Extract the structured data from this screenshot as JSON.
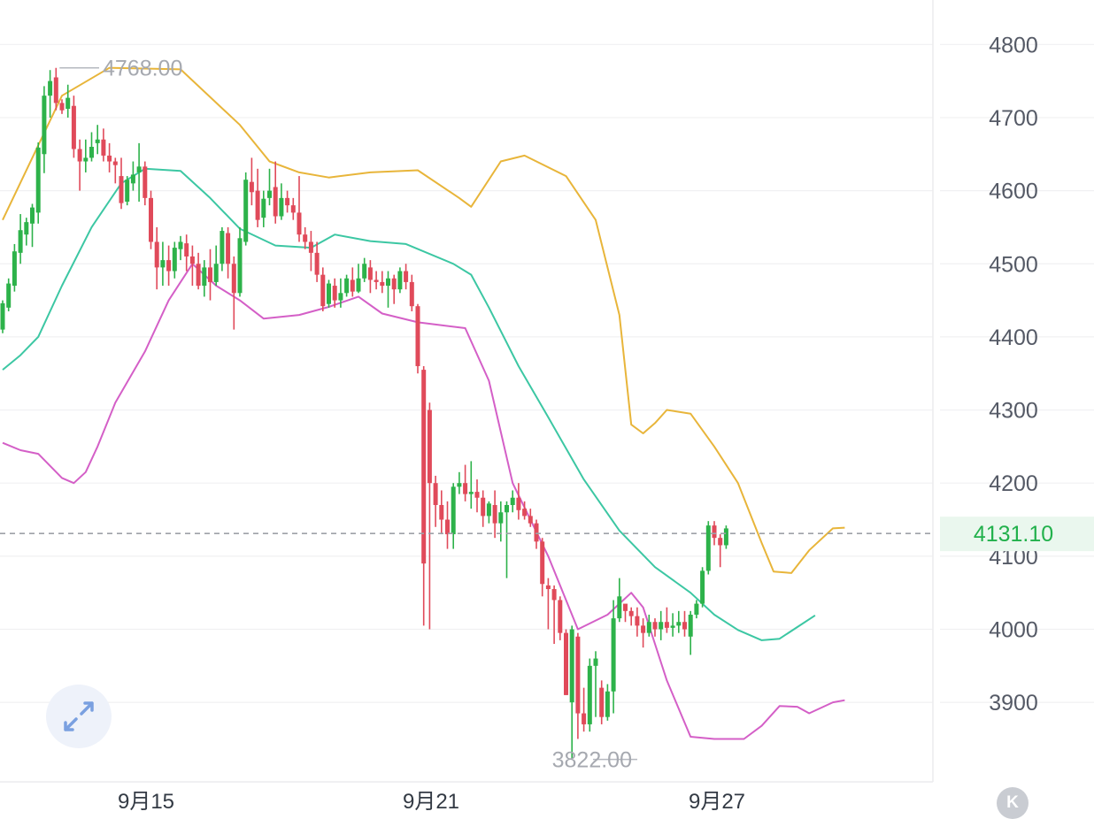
{
  "chart_data": {
    "type": "candlestick",
    "y_axis": {
      "ticks": [
        3900,
        4000,
        4100,
        4200,
        4300,
        4400,
        4500,
        4600,
        4700,
        4800
      ],
      "ylim": [
        3790,
        4855
      ],
      "position": "right"
    },
    "x_axis": {
      "labels": [
        "9月15",
        "9月21",
        "9月27"
      ]
    },
    "last_price": {
      "value": 4131.1,
      "label": "4131.10",
      "color": "#22b14c"
    },
    "max_annotation": {
      "value": 4768.0,
      "label": "4768.00"
    },
    "min_annotation": {
      "value": 3822.0,
      "label": "3822.00"
    },
    "colors": {
      "up": "#2db24a",
      "down": "#e04a5a",
      "upper_band": "#e8b53a",
      "middle_band": "#3cc7a3",
      "lower_band": "#d45fc7"
    },
    "candles": [
      [
        4410,
        4446,
        4405,
        4450
      ],
      [
        4440,
        4473,
        4435,
        4480
      ],
      [
        4470,
        4517,
        4462,
        4527
      ],
      [
        4515,
        4546,
        4500,
        4568
      ],
      [
        4540,
        4557,
        4525,
        4563
      ],
      [
        4555,
        4577,
        4523,
        4582
      ],
      [
        4570,
        4659,
        4555,
        4666
      ],
      [
        4650,
        4730,
        4624,
        4743
      ],
      [
        4730,
        4750,
        4700,
        4765
      ],
      [
        4755,
        4720,
        4710,
        4768
      ],
      [
        4720,
        4710,
        4705,
        4725
      ],
      [
        4712,
        4727,
        4700,
        4745
      ],
      [
        4716,
        4657,
        4645,
        4730
      ],
      [
        4657,
        4640,
        4600,
        4670
      ],
      [
        4640,
        4645,
        4625,
        4670
      ],
      [
        4645,
        4660,
        4640,
        4680
      ],
      [
        4665,
        4670,
        4650,
        4690
      ],
      [
        4670,
        4648,
        4640,
        4685
      ],
      [
        4648,
        4640,
        4625,
        4665
      ],
      [
        4640,
        4635,
        4610,
        4645
      ],
      [
        4620,
        4583,
        4575,
        4645
      ],
      [
        4585,
        4615,
        4580,
        4620
      ],
      [
        4610,
        4622,
        4600,
        4640
      ],
      [
        4625,
        4633,
        4585,
        4665
      ],
      [
        4633,
        4590,
        4580,
        4640
      ],
      [
        4590,
        4530,
        4520,
        4600
      ],
      [
        4530,
        4495,
        4465,
        4550
      ],
      [
        4495,
        4505,
        4470,
        4530
      ],
      [
        4505,
        4490,
        4470,
        4525
      ],
      [
        4490,
        4522,
        4480,
        4530
      ],
      [
        4520,
        4530,
        4505,
        4538
      ],
      [
        4528,
        4510,
        4490,
        4540
      ],
      [
        4510,
        4500,
        4470,
        4525
      ],
      [
        4500,
        4470,
        4465,
        4515
      ],
      [
        4470,
        4495,
        4455,
        4505
      ],
      [
        4495,
        4475,
        4450,
        4520
      ],
      [
        4475,
        4500,
        4470,
        4525
      ],
      [
        4500,
        4545,
        4490,
        4550
      ],
      [
        4542,
        4500,
        4480,
        4550
      ],
      [
        4500,
        4460,
        4410,
        4510
      ],
      [
        4460,
        4535,
        4455,
        4550
      ],
      [
        4530,
        4615,
        4525,
        4625
      ],
      [
        4612,
        4598,
        4580,
        4645
      ],
      [
        4600,
        4560,
        4550,
        4630
      ],
      [
        4563,
        4589,
        4550,
        4600
      ],
      [
        4590,
        4600,
        4580,
        4630
      ],
      [
        4605,
        4565,
        4555,
        4640
      ],
      [
        4565,
        4590,
        4560,
        4610
      ],
      [
        4590,
        4580,
        4570,
        4600
      ],
      [
        4580,
        4570,
        4560,
        4590
      ],
      [
        4570,
        4540,
        4530,
        4620
      ],
      [
        4540,
        4530,
        4520,
        4550
      ],
      [
        4530,
        4515,
        4490,
        4545
      ],
      [
        4515,
        4485,
        4475,
        4530
      ],
      [
        4485,
        4442,
        4435,
        4495
      ],
      [
        4445,
        4473,
        4440,
        4478
      ],
      [
        4470,
        4450,
        4440,
        4480
      ],
      [
        4450,
        4460,
        4440,
        4480
      ],
      [
        4460,
        4480,
        4455,
        4485
      ],
      [
        4478,
        4462,
        4455,
        4495
      ],
      [
        4462,
        4480,
        4460,
        4500
      ],
      [
        4480,
        4500,
        4475,
        4508
      ],
      [
        4495,
        4478,
        4460,
        4505
      ],
      [
        4478,
        4475,
        4465,
        4490
      ],
      [
        4475,
        4470,
        4460,
        4490
      ],
      [
        4470,
        4480,
        4440,
        4490
      ],
      [
        4480,
        4465,
        4445,
        4485
      ],
      [
        4465,
        4490,
        4460,
        4495
      ],
      [
        4490,
        4475,
        4465,
        4500
      ],
      [
        4475,
        4442,
        4435,
        4485
      ],
      [
        4442,
        4360,
        4350,
        4445
      ],
      [
        4355,
        4090,
        4005,
        4360
      ],
      [
        4300,
        4200,
        4000,
        4310
      ],
      [
        4200,
        4170,
        4140,
        4210
      ],
      [
        4170,
        4150,
        4130,
        4190
      ],
      [
        4150,
        4130,
        4110,
        4175
      ],
      [
        4130,
        4195,
        4110,
        4200
      ],
      [
        4195,
        4200,
        4185,
        4215
      ],
      [
        4200,
        4185,
        4175,
        4225
      ],
      [
        4185,
        4188,
        4165,
        4230
      ],
      [
        4188,
        4180,
        4160,
        4205
      ],
      [
        4180,
        4155,
        4140,
        4190
      ],
      [
        4155,
        4172,
        4145,
        4175
      ],
      [
        4170,
        4145,
        4125,
        4190
      ],
      [
        4145,
        4160,
        4120,
        4175
      ],
      [
        4160,
        4170,
        4070,
        4175
      ],
      [
        4170,
        4180,
        4160,
        4190
      ],
      [
        4180,
        4163,
        4150,
        4200
      ],
      [
        4165,
        4155,
        4150,
        4175
      ],
      [
        4155,
        4145,
        4140,
        4165
      ],
      [
        4145,
        4120,
        4110,
        4150
      ],
      [
        4120,
        4062,
        4045,
        4125
      ],
      [
        4060,
        4055,
        4000,
        4070
      ],
      [
        4055,
        4040,
        3980,
        4060
      ],
      [
        4040,
        3995,
        3985,
        4045
      ],
      [
        3995,
        3910,
        3910,
        4000
      ],
      [
        3900,
        4000,
        3822,
        4005
      ],
      [
        3990,
        3885,
        3850,
        3995
      ],
      [
        3885,
        3870,
        3860,
        3920
      ],
      [
        3870,
        3950,
        3860,
        3960
      ],
      [
        3950,
        3960,
        3880,
        3970
      ],
      [
        3920,
        3880,
        3870,
        3930
      ],
      [
        3880,
        3915,
        3875,
        3925
      ],
      [
        3915,
        4015,
        3885,
        4040
      ],
      [
        4015,
        4045,
        4010,
        4070
      ],
      [
        4035,
        4025,
        4010,
        4030
      ],
      [
        4025,
        4018,
        4005,
        4030
      ],
      [
        4018,
        4005,
        3990,
        4030
      ],
      [
        4005,
        3995,
        3975,
        4015
      ],
      [
        3995,
        4010,
        3990,
        4020
      ],
      [
        4010,
        4000,
        3990,
        4015
      ],
      [
        4000,
        4010,
        3985,
        4025
      ],
      [
        4010,
        4002,
        3995,
        4030
      ],
      [
        4002,
        4005,
        3990,
        4022
      ],
      [
        4005,
        4010,
        3995,
        4025
      ],
      [
        4010,
        4000,
        3990,
        4025
      ],
      [
        3990,
        4020,
        3965,
        4025
      ],
      [
        4020,
        4035,
        4015,
        4040
      ],
      [
        4035,
        4080,
        4030,
        4085
      ],
      [
        4080,
        4142,
        4075,
        4148
      ],
      [
        4142,
        4125,
        4115,
        4148
      ],
      [
        4125,
        4115,
        4085,
        4130
      ],
      [
        4115,
        4138,
        4110,
        4142
      ]
    ],
    "upper_band": [
      [
        0,
        4560
      ],
      [
        10,
        4730
      ],
      [
        18,
        4768
      ],
      [
        30,
        4766
      ],
      [
        40,
        4690
      ],
      [
        45,
        4640
      ],
      [
        50,
        4625
      ],
      [
        55,
        4618
      ],
      [
        62,
        4625
      ],
      [
        70,
        4628
      ],
      [
        77,
        4590
      ],
      [
        79,
        4578
      ],
      [
        84,
        4640
      ],
      [
        88,
        4648
      ],
      [
        95,
        4620
      ],
      [
        100,
        4560
      ],
      [
        104,
        4430
      ],
      [
        106,
        4280
      ],
      [
        108,
        4268
      ],
      [
        110,
        4282
      ],
      [
        112,
        4300
      ],
      [
        116,
        4295
      ],
      [
        120,
        4250
      ],
      [
        124,
        4200
      ],
      [
        128,
        4118
      ],
      [
        130,
        4079
      ],
      [
        133,
        4077
      ],
      [
        136,
        4108
      ],
      [
        140,
        4138
      ],
      [
        142,
        4139
      ]
    ],
    "middle_band": [
      [
        0,
        4355
      ],
      [
        3,
        4375
      ],
      [
        6,
        4400
      ],
      [
        10,
        4470
      ],
      [
        15,
        4550
      ],
      [
        20,
        4610
      ],
      [
        24,
        4630
      ],
      [
        30,
        4627
      ],
      [
        35,
        4590
      ],
      [
        40,
        4548
      ],
      [
        46,
        4525
      ],
      [
        52,
        4522
      ],
      [
        56,
        4540
      ],
      [
        62,
        4531
      ],
      [
        68,
        4527
      ],
      [
        76,
        4500
      ],
      [
        79,
        4485
      ],
      [
        82,
        4440
      ],
      [
        87,
        4360
      ],
      [
        92,
        4290
      ],
      [
        98,
        4205
      ],
      [
        104,
        4135
      ],
      [
        110,
        4085
      ],
      [
        116,
        4050
      ],
      [
        120,
        4020
      ],
      [
        124,
        3999
      ],
      [
        128,
        3985
      ],
      [
        131,
        3987
      ],
      [
        134,
        4003
      ],
      [
        137,
        4019
      ]
    ],
    "lower_band": [
      [
        0,
        4255
      ],
      [
        3,
        4245
      ],
      [
        6,
        4240
      ],
      [
        10,
        4207
      ],
      [
        12,
        4200
      ],
      [
        14,
        4215
      ],
      [
        16,
        4250
      ],
      [
        19,
        4310
      ],
      [
        24,
        4380
      ],
      [
        28,
        4450
      ],
      [
        32,
        4500
      ],
      [
        36,
        4470
      ],
      [
        40,
        4450
      ],
      [
        44,
        4425
      ],
      [
        50,
        4430
      ],
      [
        55,
        4441
      ],
      [
        60,
        4455
      ],
      [
        64,
        4432
      ],
      [
        70,
        4420
      ],
      [
        78,
        4412
      ],
      [
        82,
        4340
      ],
      [
        86,
        4200
      ],
      [
        92,
        4100
      ],
      [
        97,
        4000
      ],
      [
        102,
        4020
      ],
      [
        106,
        4050
      ],
      [
        108,
        4030
      ],
      [
        112,
        3930
      ],
      [
        116,
        3853
      ],
      [
        120,
        3850
      ],
      [
        125,
        3850
      ],
      [
        128,
        3868
      ],
      [
        131,
        3895
      ],
      [
        134,
        3894
      ],
      [
        136,
        3885
      ],
      [
        140,
        3900
      ],
      [
        142,
        3903
      ]
    ]
  },
  "ui": {
    "expand_icon": "expand-arrows-icon",
    "k_button_label": "K"
  }
}
